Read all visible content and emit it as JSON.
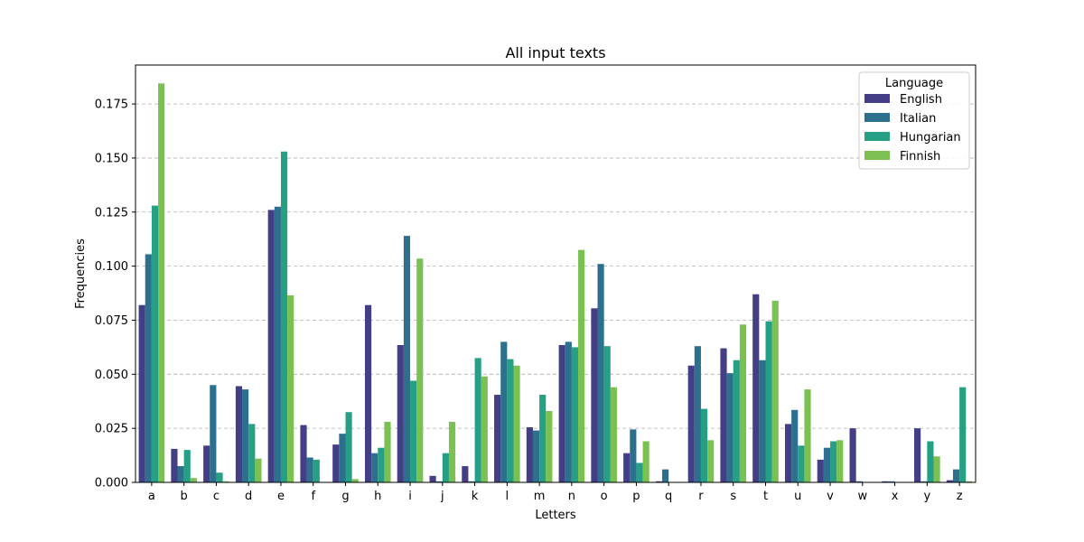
{
  "chart_data": {
    "type": "bar",
    "title": "All input texts",
    "xlabel": "Letters",
    "ylabel": "Frequencies",
    "ylim": [
      0,
      0.193
    ],
    "yticks": [
      "0.000",
      "0.025",
      "0.050",
      "0.075",
      "0.100",
      "0.125",
      "0.150",
      "0.175"
    ],
    "grid": "horizontal-dashed",
    "legend_title": "Language",
    "legend_position": "top-right",
    "categories": [
      "a",
      "b",
      "c",
      "d",
      "e",
      "f",
      "g",
      "h",
      "i",
      "j",
      "k",
      "l",
      "m",
      "n",
      "o",
      "p",
      "q",
      "r",
      "s",
      "t",
      "u",
      "v",
      "w",
      "x",
      "y",
      "z"
    ],
    "series": [
      {
        "name": "English",
        "color": "#433e85",
        "values": [
          0.082,
          0.0155,
          0.017,
          0.0445,
          0.126,
          0.0265,
          0.0175,
          0.082,
          0.0635,
          0.003,
          0.0075,
          0.0405,
          0.0255,
          0.0635,
          0.0805,
          0.0135,
          0.0005,
          0.054,
          0.062,
          0.087,
          0.027,
          0.0105,
          0.025,
          0.0005,
          0.025,
          0.001
        ]
      },
      {
        "name": "Italian",
        "color": "#2d708e",
        "values": [
          0.1055,
          0.0075,
          0.045,
          0.043,
          0.1275,
          0.0115,
          0.0225,
          0.0135,
          0.114,
          0.0005,
          0.0005,
          0.065,
          0.024,
          0.065,
          0.101,
          0.0245,
          0.006,
          0.063,
          0.0505,
          0.0565,
          0.0335,
          0.016,
          0.0005,
          0.0005,
          0.0005,
          0.006
        ]
      },
      {
        "name": "Hungarian",
        "color": "#25a085",
        "values": [
          0.128,
          0.015,
          0.0045,
          0.027,
          0.153,
          0.0105,
          0.0325,
          0.016,
          0.047,
          0.0135,
          0.0575,
          0.057,
          0.0405,
          0.0625,
          0.063,
          0.009,
          0.0002,
          0.034,
          0.0565,
          0.0745,
          0.017,
          0.019,
          0.0002,
          0.0002,
          0.019,
          0.044
        ]
      },
      {
        "name": "Finnish",
        "color": "#7ac152",
        "values": [
          0.1845,
          0.002,
          0.0005,
          0.011,
          0.0865,
          0.0002,
          0.0015,
          0.028,
          0.1035,
          0.028,
          0.049,
          0.054,
          0.033,
          0.1075,
          0.044,
          0.019,
          0.0002,
          0.0195,
          0.073,
          0.084,
          0.043,
          0.0195,
          0.0002,
          0.0002,
          0.012,
          0.0005
        ]
      }
    ]
  }
}
